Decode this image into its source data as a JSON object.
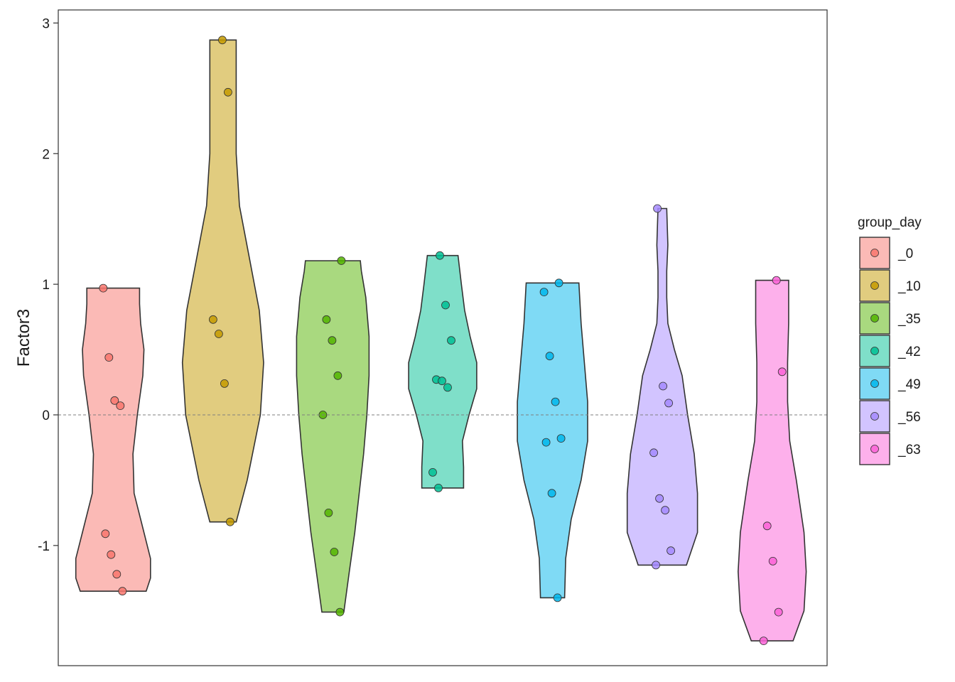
{
  "chart_data": {
    "type": "violin",
    "title": "",
    "xlabel": "",
    "ylabel": "Factor3",
    "ylim": [
      -1.92,
      3.1
    ],
    "yticks": [
      -1,
      0,
      1,
      2,
      3
    ],
    "ytick_labels": [
      "-1",
      "0",
      "1",
      "2",
      "3"
    ],
    "reference_line": {
      "y": 0,
      "style": "dashed"
    },
    "grid": false,
    "legend": {
      "title": "group_day",
      "position": "right"
    },
    "series": [
      {
        "name": "_0",
        "color": "#F8766D",
        "points": [
          0.97,
          0.44,
          0.11,
          0.07,
          -0.91,
          -1.07,
          -1.22,
          -1.35
        ],
        "violin": [
          [
            -1.35,
            0.3
          ],
          [
            -1.25,
            0.34
          ],
          [
            -1.1,
            0.34
          ],
          [
            -0.9,
            0.28
          ],
          [
            -0.6,
            0.19
          ],
          [
            -0.3,
            0.18
          ],
          [
            0.0,
            0.22
          ],
          [
            0.3,
            0.27
          ],
          [
            0.5,
            0.28
          ],
          [
            0.7,
            0.25
          ],
          [
            0.85,
            0.24
          ],
          [
            0.97,
            0.24
          ]
        ]
      },
      {
        "name": "_10",
        "color": "#C49A00",
        "points": [
          2.87,
          2.47,
          0.73,
          0.62,
          0.24,
          -0.82
        ],
        "violin": [
          [
            -0.82,
            0.12
          ],
          [
            -0.5,
            0.22
          ],
          [
            0.0,
            0.34
          ],
          [
            0.4,
            0.37
          ],
          [
            0.8,
            0.33
          ],
          [
            1.2,
            0.24
          ],
          [
            1.6,
            0.15
          ],
          [
            2.0,
            0.12
          ],
          [
            2.4,
            0.12
          ],
          [
            2.87,
            0.12
          ]
        ]
      },
      {
        "name": "_35",
        "color": "#53B400",
        "points": [
          1.18,
          0.73,
          0.57,
          0.3,
          0.0,
          -0.75,
          -1.05,
          -1.51
        ],
        "violin": [
          [
            -1.51,
            0.1
          ],
          [
            -1.2,
            0.15
          ],
          [
            -0.9,
            0.2
          ],
          [
            -0.6,
            0.24
          ],
          [
            -0.3,
            0.28
          ],
          [
            0.0,
            0.31
          ],
          [
            0.3,
            0.33
          ],
          [
            0.6,
            0.33
          ],
          [
            0.9,
            0.3
          ],
          [
            1.1,
            0.26
          ],
          [
            1.18,
            0.25
          ]
        ]
      },
      {
        "name": "_42",
        "color": "#00C094",
        "points": [
          1.22,
          0.84,
          0.57,
          0.27,
          0.26,
          0.21,
          -0.44,
          -0.56
        ],
        "violin": [
          [
            -0.56,
            0.19
          ],
          [
            -0.4,
            0.19
          ],
          [
            -0.2,
            0.18
          ],
          [
            0.0,
            0.24
          ],
          [
            0.2,
            0.31
          ],
          [
            0.4,
            0.31
          ],
          [
            0.6,
            0.25
          ],
          [
            0.8,
            0.2
          ],
          [
            1.0,
            0.17
          ],
          [
            1.22,
            0.14
          ]
        ]
      },
      {
        "name": "_49",
        "color": "#00B6EB",
        "points": [
          1.01,
          0.94,
          0.45,
          0.1,
          -0.18,
          -0.21,
          -0.6,
          -1.4
        ],
        "violin": [
          [
            -1.4,
            0.11
          ],
          [
            -1.1,
            0.12
          ],
          [
            -0.8,
            0.17
          ],
          [
            -0.5,
            0.26
          ],
          [
            -0.2,
            0.32
          ],
          [
            0.1,
            0.32
          ],
          [
            0.4,
            0.29
          ],
          [
            0.7,
            0.26
          ],
          [
            1.01,
            0.24
          ]
        ]
      },
      {
        "name": "_56",
        "color": "#A58AFF",
        "points": [
          1.58,
          0.22,
          0.09,
          -0.29,
          -0.64,
          -0.73,
          -1.04,
          -1.15
        ],
        "violin": [
          [
            -1.15,
            0.22
          ],
          [
            -0.9,
            0.32
          ],
          [
            -0.6,
            0.32
          ],
          [
            -0.3,
            0.29
          ],
          [
            0.0,
            0.23
          ],
          [
            0.3,
            0.18
          ],
          [
            0.5,
            0.11
          ],
          [
            0.7,
            0.05
          ],
          [
            0.9,
            0.04
          ],
          [
            1.1,
            0.04
          ],
          [
            1.3,
            0.05
          ],
          [
            1.58,
            0.04
          ]
        ]
      },
      {
        "name": "_63",
        "color": "#FB61D7",
        "points": [
          1.03,
          0.33,
          -0.85,
          -1.12,
          -1.51,
          -1.73
        ],
        "violin": [
          [
            -1.73,
            0.19
          ],
          [
            -1.5,
            0.29
          ],
          [
            -1.2,
            0.31
          ],
          [
            -0.9,
            0.29
          ],
          [
            -0.5,
            0.22
          ],
          [
            -0.2,
            0.16
          ],
          [
            0.1,
            0.14
          ],
          [
            0.4,
            0.14
          ],
          [
            0.7,
            0.15
          ],
          [
            1.03,
            0.15
          ]
        ]
      }
    ]
  }
}
